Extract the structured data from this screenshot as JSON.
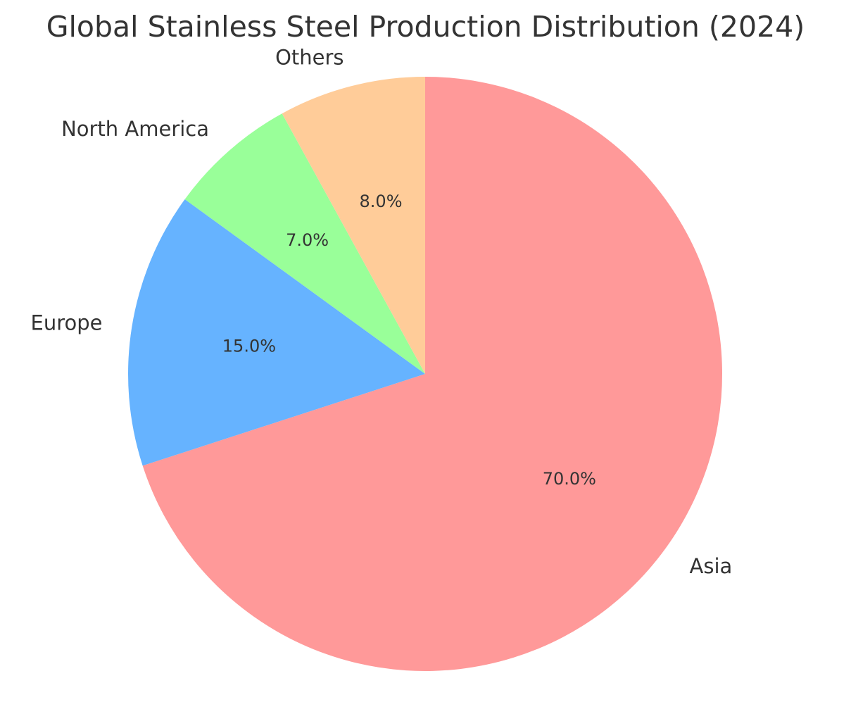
{
  "chart_data": {
    "type": "pie",
    "title": "Global Stainless Steel Production Distribution (2024)",
    "start_angle_deg": 90,
    "direction": "clockwise",
    "labels": [
      "Asia",
      "Europe",
      "North America",
      "Others"
    ],
    "values": [
      70.0,
      15.0,
      7.0,
      8.0
    ],
    "percent_labels": [
      "70.0%",
      "15.0%",
      "7.0%",
      "8.0%"
    ],
    "colors": [
      "#ff9999",
      "#66b3ff",
      "#99ff99",
      "#ffcc99"
    ],
    "label_color": "#333333",
    "legend": "none"
  }
}
